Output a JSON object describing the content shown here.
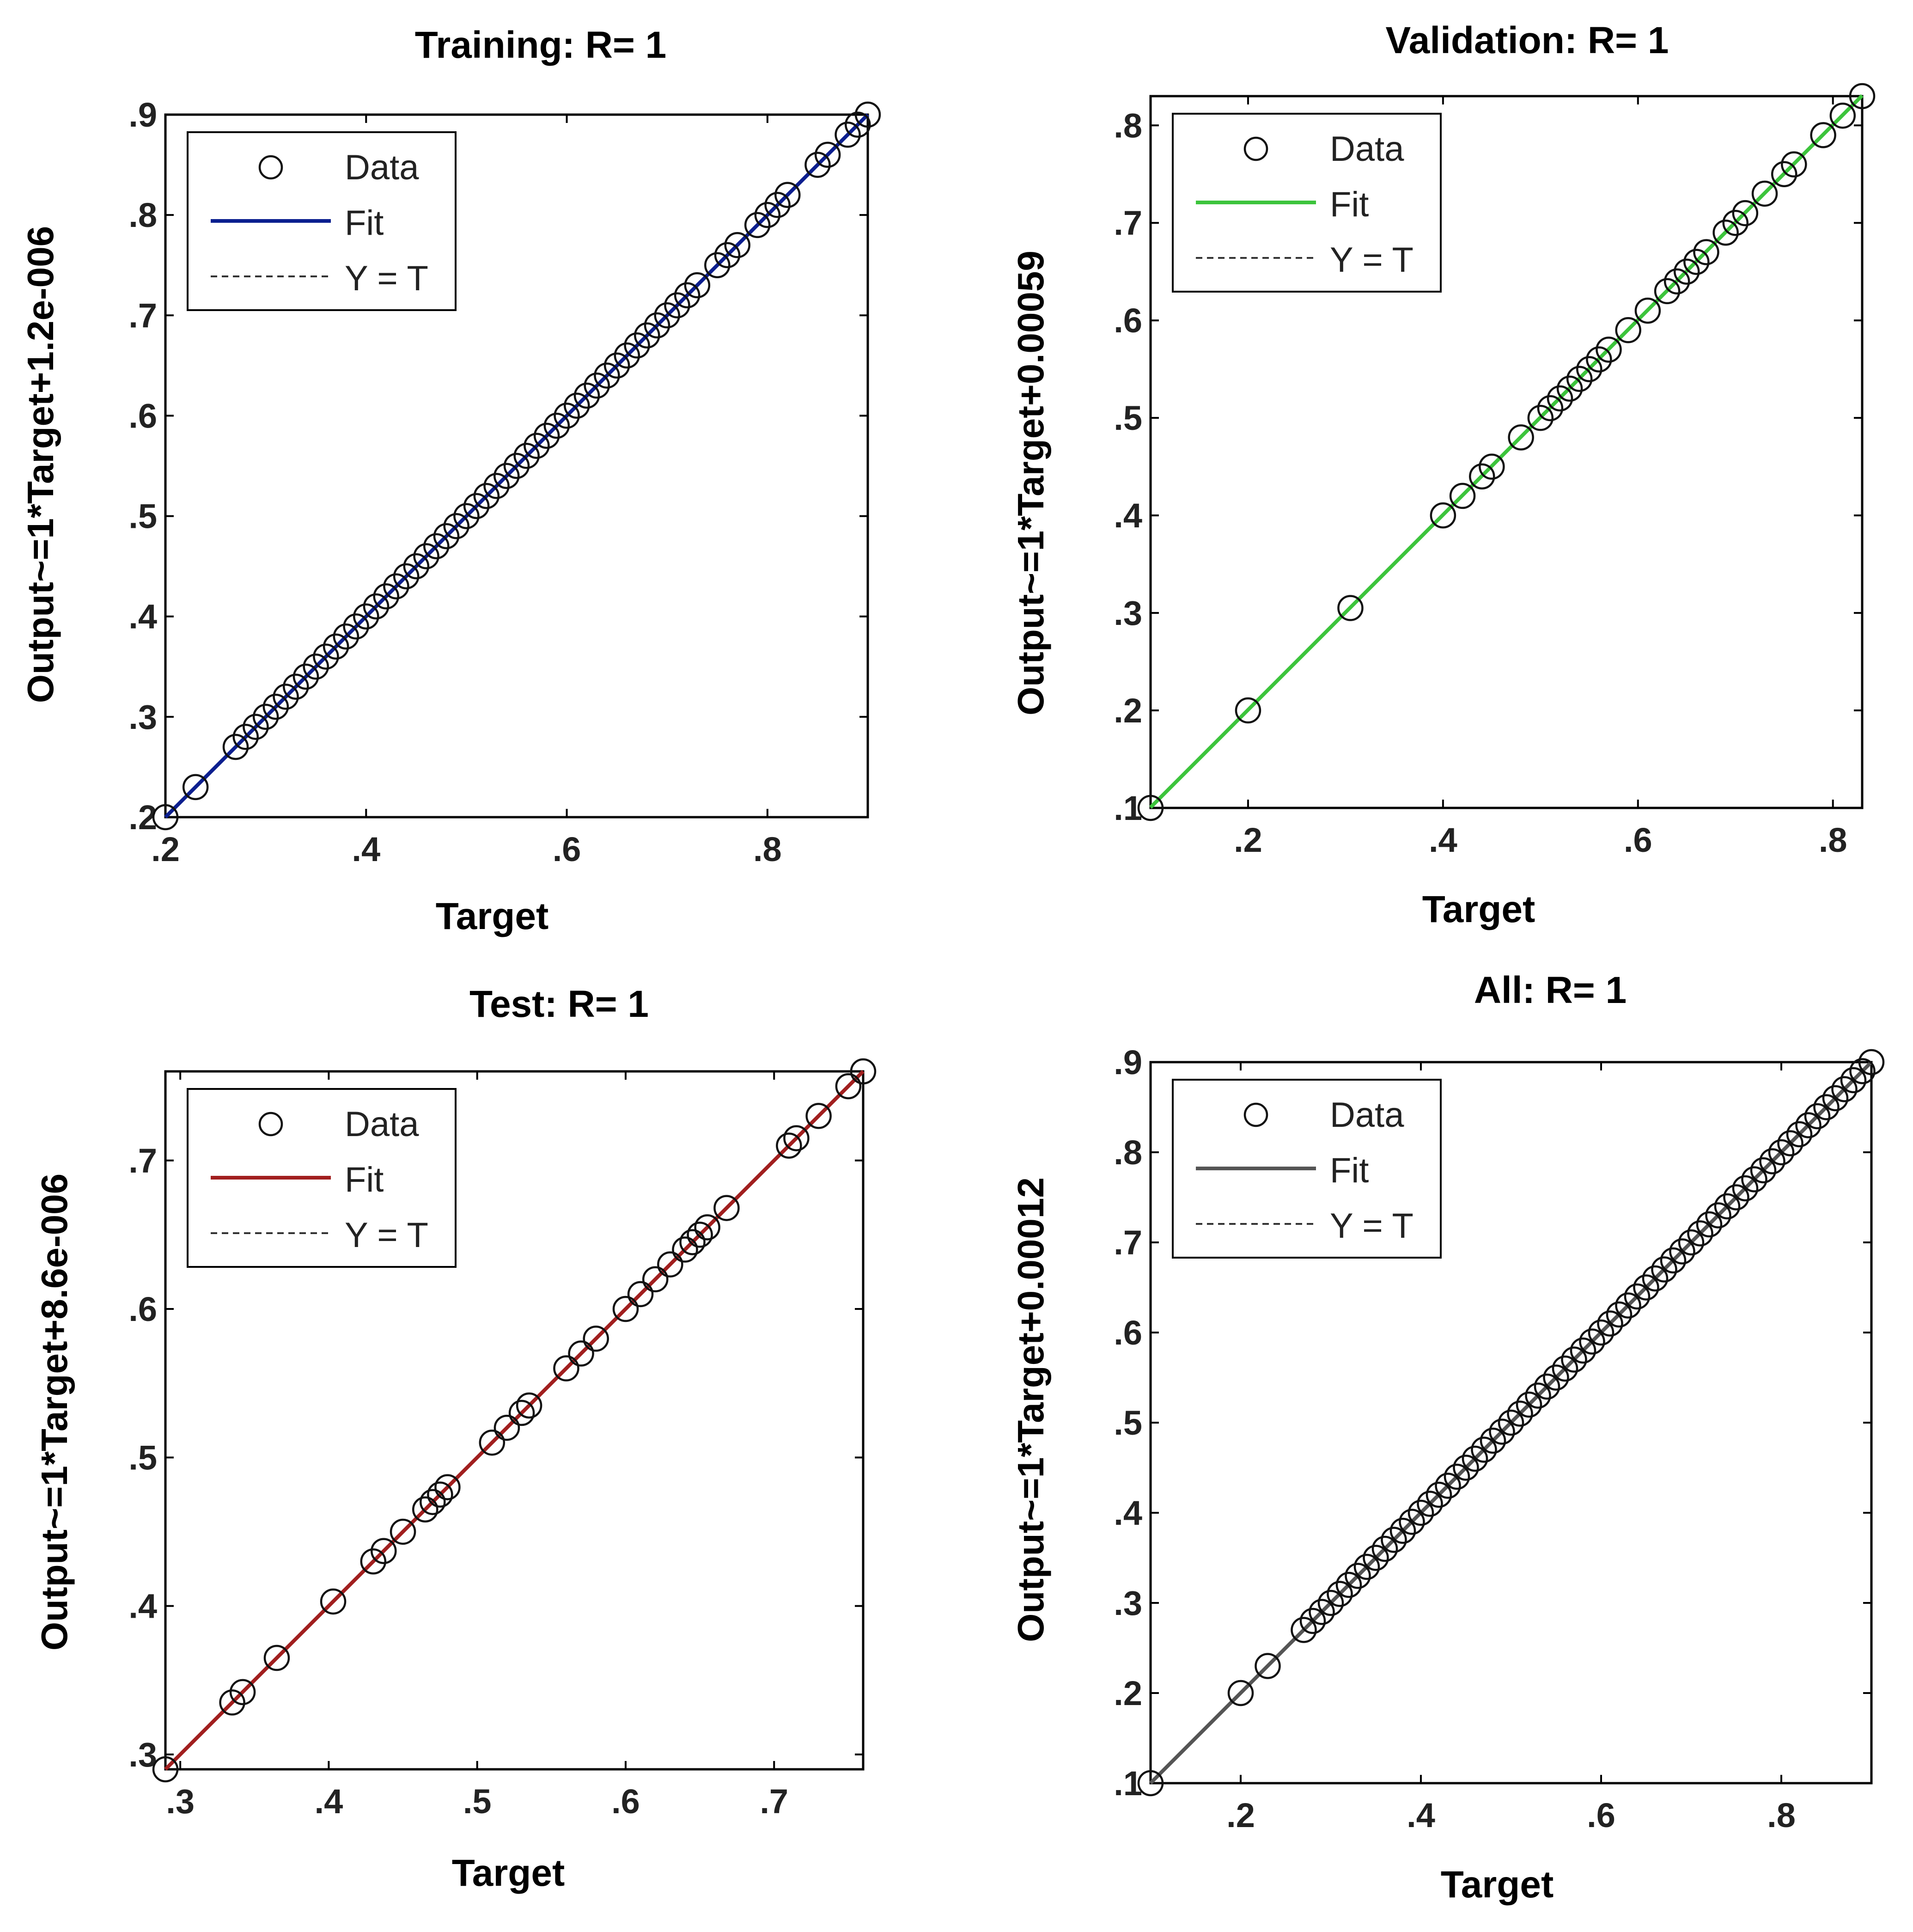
{
  "figure": {
    "description_none": ""
  },
  "legend_labels": {
    "data": "Data",
    "fit": "Fit",
    "yt": "Y = T"
  },
  "chart_data": [
    {
      "type": "scatter",
      "title": "Training: R= 1",
      "xlabel": "Target",
      "ylabel": "Output~=1*Target+1.2e-006",
      "xlim": [
        0.2,
        0.9
      ],
      "ylim": [
        0.2,
        0.9
      ],
      "xticks": [
        0.2,
        0.4,
        0.6,
        0.8
      ],
      "yticks": [
        0.2,
        0.3,
        0.4,
        0.5,
        0.6,
        0.7,
        0.8,
        0.9
      ],
      "fit": {
        "slope": 1,
        "intercept": 1.2e-06,
        "color": "#0b1f8f"
      },
      "legend_location": "top-left",
      "points": [
        0.2,
        0.23,
        0.27,
        0.28,
        0.29,
        0.3,
        0.31,
        0.32,
        0.33,
        0.34,
        0.35,
        0.36,
        0.37,
        0.38,
        0.39,
        0.4,
        0.41,
        0.42,
        0.43,
        0.44,
        0.45,
        0.46,
        0.47,
        0.48,
        0.49,
        0.5,
        0.51,
        0.52,
        0.53,
        0.54,
        0.55,
        0.56,
        0.57,
        0.58,
        0.59,
        0.6,
        0.61,
        0.62,
        0.63,
        0.64,
        0.65,
        0.66,
        0.67,
        0.68,
        0.69,
        0.7,
        0.71,
        0.72,
        0.73,
        0.75,
        0.76,
        0.77,
        0.79,
        0.8,
        0.81,
        0.82,
        0.85,
        0.86,
        0.88,
        0.89,
        0.9
      ]
    },
    {
      "type": "scatter",
      "title": "Validation: R= 1",
      "xlabel": "Target",
      "ylabel": "Output~=1*Target+0.00059",
      "xlim": [
        0.1,
        0.83
      ],
      "ylim": [
        0.1,
        0.83
      ],
      "xticks": [
        0.2,
        0.4,
        0.6,
        0.8
      ],
      "yticks": [
        0.1,
        0.2,
        0.3,
        0.4,
        0.5,
        0.6,
        0.7,
        0.8
      ],
      "fit": {
        "slope": 1,
        "intercept": 0.00059,
        "color": "#3cc43c"
      },
      "legend_location": "top-left",
      "points": [
        0.1,
        0.2,
        0.305,
        0.4,
        0.42,
        0.44,
        0.45,
        0.48,
        0.5,
        0.51,
        0.52,
        0.53,
        0.54,
        0.55,
        0.56,
        0.57,
        0.59,
        0.61,
        0.63,
        0.64,
        0.65,
        0.66,
        0.67,
        0.69,
        0.7,
        0.71,
        0.73,
        0.75,
        0.76,
        0.79,
        0.81,
        0.83
      ]
    },
    {
      "type": "scatter",
      "title": "Test: R= 1",
      "xlabel": "Target",
      "ylabel": "Output~=1*Target+8.6e-006",
      "xlim": [
        0.29,
        0.76
      ],
      "ylim": [
        0.29,
        0.76
      ],
      "xticks": [
        0.3,
        0.4,
        0.5,
        0.6,
        0.7
      ],
      "yticks": [
        0.3,
        0.4,
        0.5,
        0.6,
        0.7
      ],
      "fit": {
        "slope": 1,
        "intercept": 8.6e-06,
        "color": "#a11f1f"
      },
      "legend_location": "top-left",
      "points": [
        0.29,
        0.335,
        0.342,
        0.365,
        0.403,
        0.43,
        0.437,
        0.45,
        0.465,
        0.47,
        0.475,
        0.48,
        0.51,
        0.52,
        0.53,
        0.535,
        0.56,
        0.57,
        0.58,
        0.6,
        0.61,
        0.62,
        0.63,
        0.64,
        0.645,
        0.65,
        0.655,
        0.668,
        0.71,
        0.715,
        0.73,
        0.75,
        0.76
      ]
    },
    {
      "type": "scatter",
      "title": "All: R= 1",
      "xlabel": "Target",
      "ylabel": "Output~=1*Target+0.00012",
      "xlim": [
        0.1,
        0.9
      ],
      "ylim": [
        0.1,
        0.9
      ],
      "xticks": [
        0.2,
        0.4,
        0.6,
        0.8
      ],
      "yticks": [
        0.1,
        0.2,
        0.3,
        0.4,
        0.5,
        0.6,
        0.7,
        0.8,
        0.9
      ],
      "fit": {
        "slope": 1,
        "intercept": 0.00012,
        "color": "#555555"
      },
      "legend_location": "top-left",
      "points": [
        0.1,
        0.2,
        0.23,
        0.27,
        0.28,
        0.29,
        0.3,
        0.31,
        0.32,
        0.33,
        0.34,
        0.35,
        0.36,
        0.37,
        0.38,
        0.39,
        0.4,
        0.41,
        0.42,
        0.43,
        0.44,
        0.45,
        0.46,
        0.47,
        0.48,
        0.49,
        0.5,
        0.51,
        0.52,
        0.53,
        0.54,
        0.55,
        0.56,
        0.57,
        0.58,
        0.59,
        0.6,
        0.61,
        0.62,
        0.63,
        0.64,
        0.65,
        0.66,
        0.67,
        0.68,
        0.69,
        0.7,
        0.71,
        0.72,
        0.73,
        0.74,
        0.75,
        0.76,
        0.77,
        0.78,
        0.79,
        0.8,
        0.81,
        0.82,
        0.83,
        0.84,
        0.85,
        0.86,
        0.87,
        0.88,
        0.89,
        0.9
      ]
    }
  ]
}
